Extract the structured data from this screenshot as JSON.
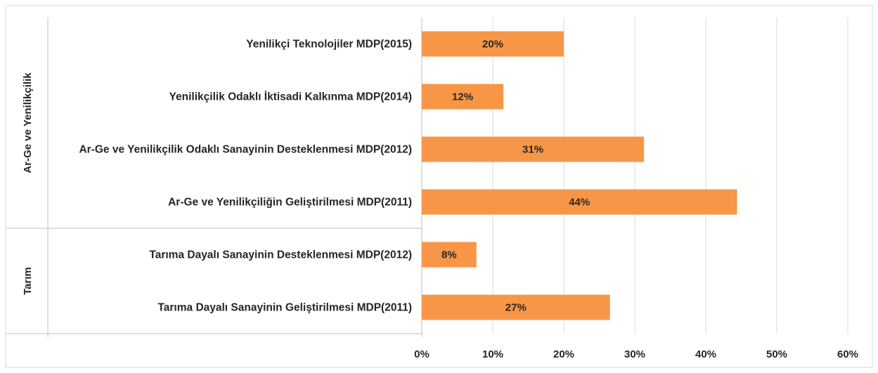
{
  "chart_data": {
    "type": "bar",
    "orientation": "horizontal",
    "categories": [
      "Yenilikçi Teknolojiler MDP(2015)",
      "Yenilikçilik Odaklı İktisadi Kalkınma MDP(2014)",
      "Ar-Ge ve Yenilikçilik Odaklı Sanayinin Desteklenmesi MDP(2012)",
      "Ar-Ge ve Yenilikçiliğin Geliştirilmesi MDP(2011)",
      "Tarıma Dayalı Sanayinin Desteklenmesi MDP(2012)",
      "Tarıma Dayalı Sanayinin Geliştirilmesi MDP(2011)"
    ],
    "group": [
      "Ar-Ge ve Yenilikçilik",
      "Ar-Ge ve Yenilikçilik",
      "Ar-Ge ve Yenilikçilik",
      "Ar-Ge ve Yenilikçilik",
      "Tarım",
      "Tarım"
    ],
    "values": [
      20,
      11.5,
      31.3,
      44.4,
      7.7,
      26.5
    ],
    "value_labels": [
      "20%",
      "12%",
      "31%",
      "44%",
      "8%",
      "27%"
    ],
    "color": "#f79646",
    "xlim": [
      0,
      60
    ],
    "xticks": [
      {
        "value": 0,
        "label": "0%"
      },
      {
        "value": 10,
        "label": "10%"
      },
      {
        "value": 20,
        "label": "20%"
      },
      {
        "value": 30,
        "label": "30%"
      },
      {
        "value": 40,
        "label": "40%"
      },
      {
        "value": 50,
        "label": "50%"
      },
      {
        "value": 60,
        "label": "60%"
      }
    ],
    "grid": true
  }
}
